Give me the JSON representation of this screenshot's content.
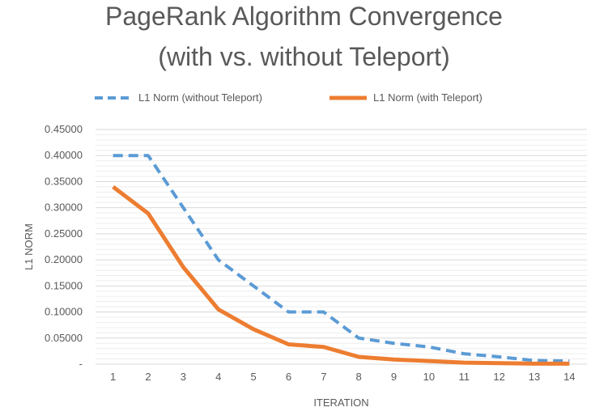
{
  "chart_data": {
    "type": "line",
    "title_line1": "PageRank Algorithm Convergence",
    "title_line2": "(with vs. without Teleport)",
    "xlabel": "ITERATION",
    "ylabel": "L1 NORM",
    "categories": [
      "1",
      "2",
      "3",
      "4",
      "5",
      "6",
      "7",
      "8",
      "9",
      "10",
      "11",
      "12",
      "13",
      "14"
    ],
    "y_ticks": [
      "-",
      "0.05000",
      "0.10000",
      "0.15000",
      "0.20000",
      "0.25000",
      "0.30000",
      "0.35000",
      "0.40000",
      "0.45000"
    ],
    "ylim": [
      0,
      0.45
    ],
    "grid": true,
    "legend_position": "top",
    "series": [
      {
        "name": "L1 Norm (without Teleport)",
        "style": "dashed",
        "color": "#5B9BD5",
        "values": [
          0.4,
          0.4,
          0.3,
          0.2,
          0.15,
          0.1,
          0.1,
          0.05,
          0.04,
          0.033,
          0.02,
          0.014,
          0.007,
          0.006
        ]
      },
      {
        "name": "L1 Norm (with Teleport)",
        "style": "solid",
        "color": "#ED7D31",
        "values": [
          0.34,
          0.289,
          0.186,
          0.105,
          0.067,
          0.038,
          0.033,
          0.014,
          0.009,
          0.006,
          0.003,
          0.002,
          0.001,
          0.001
        ]
      }
    ]
  }
}
